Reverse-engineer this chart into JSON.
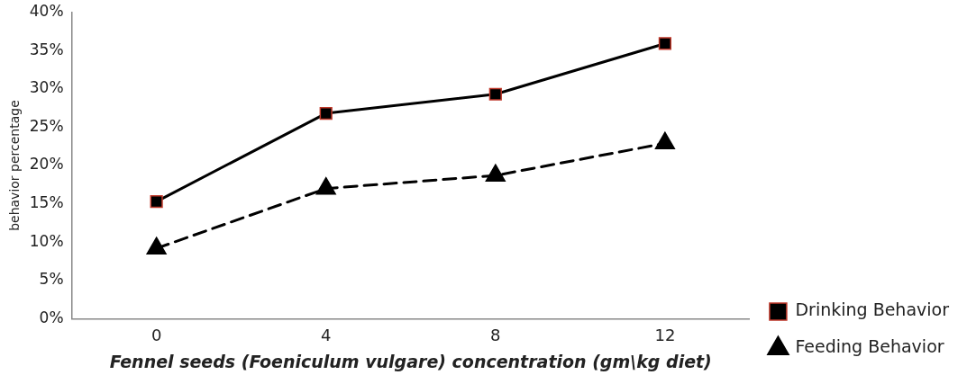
{
  "chart_data": {
    "type": "line",
    "xlabel": "Fennel seeds (Foeniculum vulgare) concentration (gm\\kg diet)",
    "ylabel": "behavior percentage",
    "categories": [
      "0",
      "4",
      "8",
      "12"
    ],
    "series": [
      {
        "name": "Drinking Behavior",
        "color": "#000000",
        "values": [
          15.3,
          26.8,
          29.3,
          35.9
        ],
        "marker": "square",
        "line_style": "solid"
      },
      {
        "name": "Feeding Behavior",
        "color": "#000000",
        "values": [
          9.2,
          17.0,
          18.7,
          22.9
        ],
        "marker": "triangle",
        "line_style": "dashed"
      }
    ],
    "ylim": [
      0,
      40
    ],
    "yticks": [
      {
        "value": 0,
        "label": "0%"
      },
      {
        "value": 5,
        "label": "5%"
      },
      {
        "value": 10,
        "label": "10%"
      },
      {
        "value": 15,
        "label": "15%"
      },
      {
        "value": 20,
        "label": "20%"
      },
      {
        "value": 25,
        "label": "25%"
      },
      {
        "value": 30,
        "label": "30%"
      },
      {
        "value": 35,
        "label": "35%"
      },
      {
        "value": 40,
        "label": "40%"
      }
    ],
    "grid": false,
    "legend": "bottom right"
  }
}
